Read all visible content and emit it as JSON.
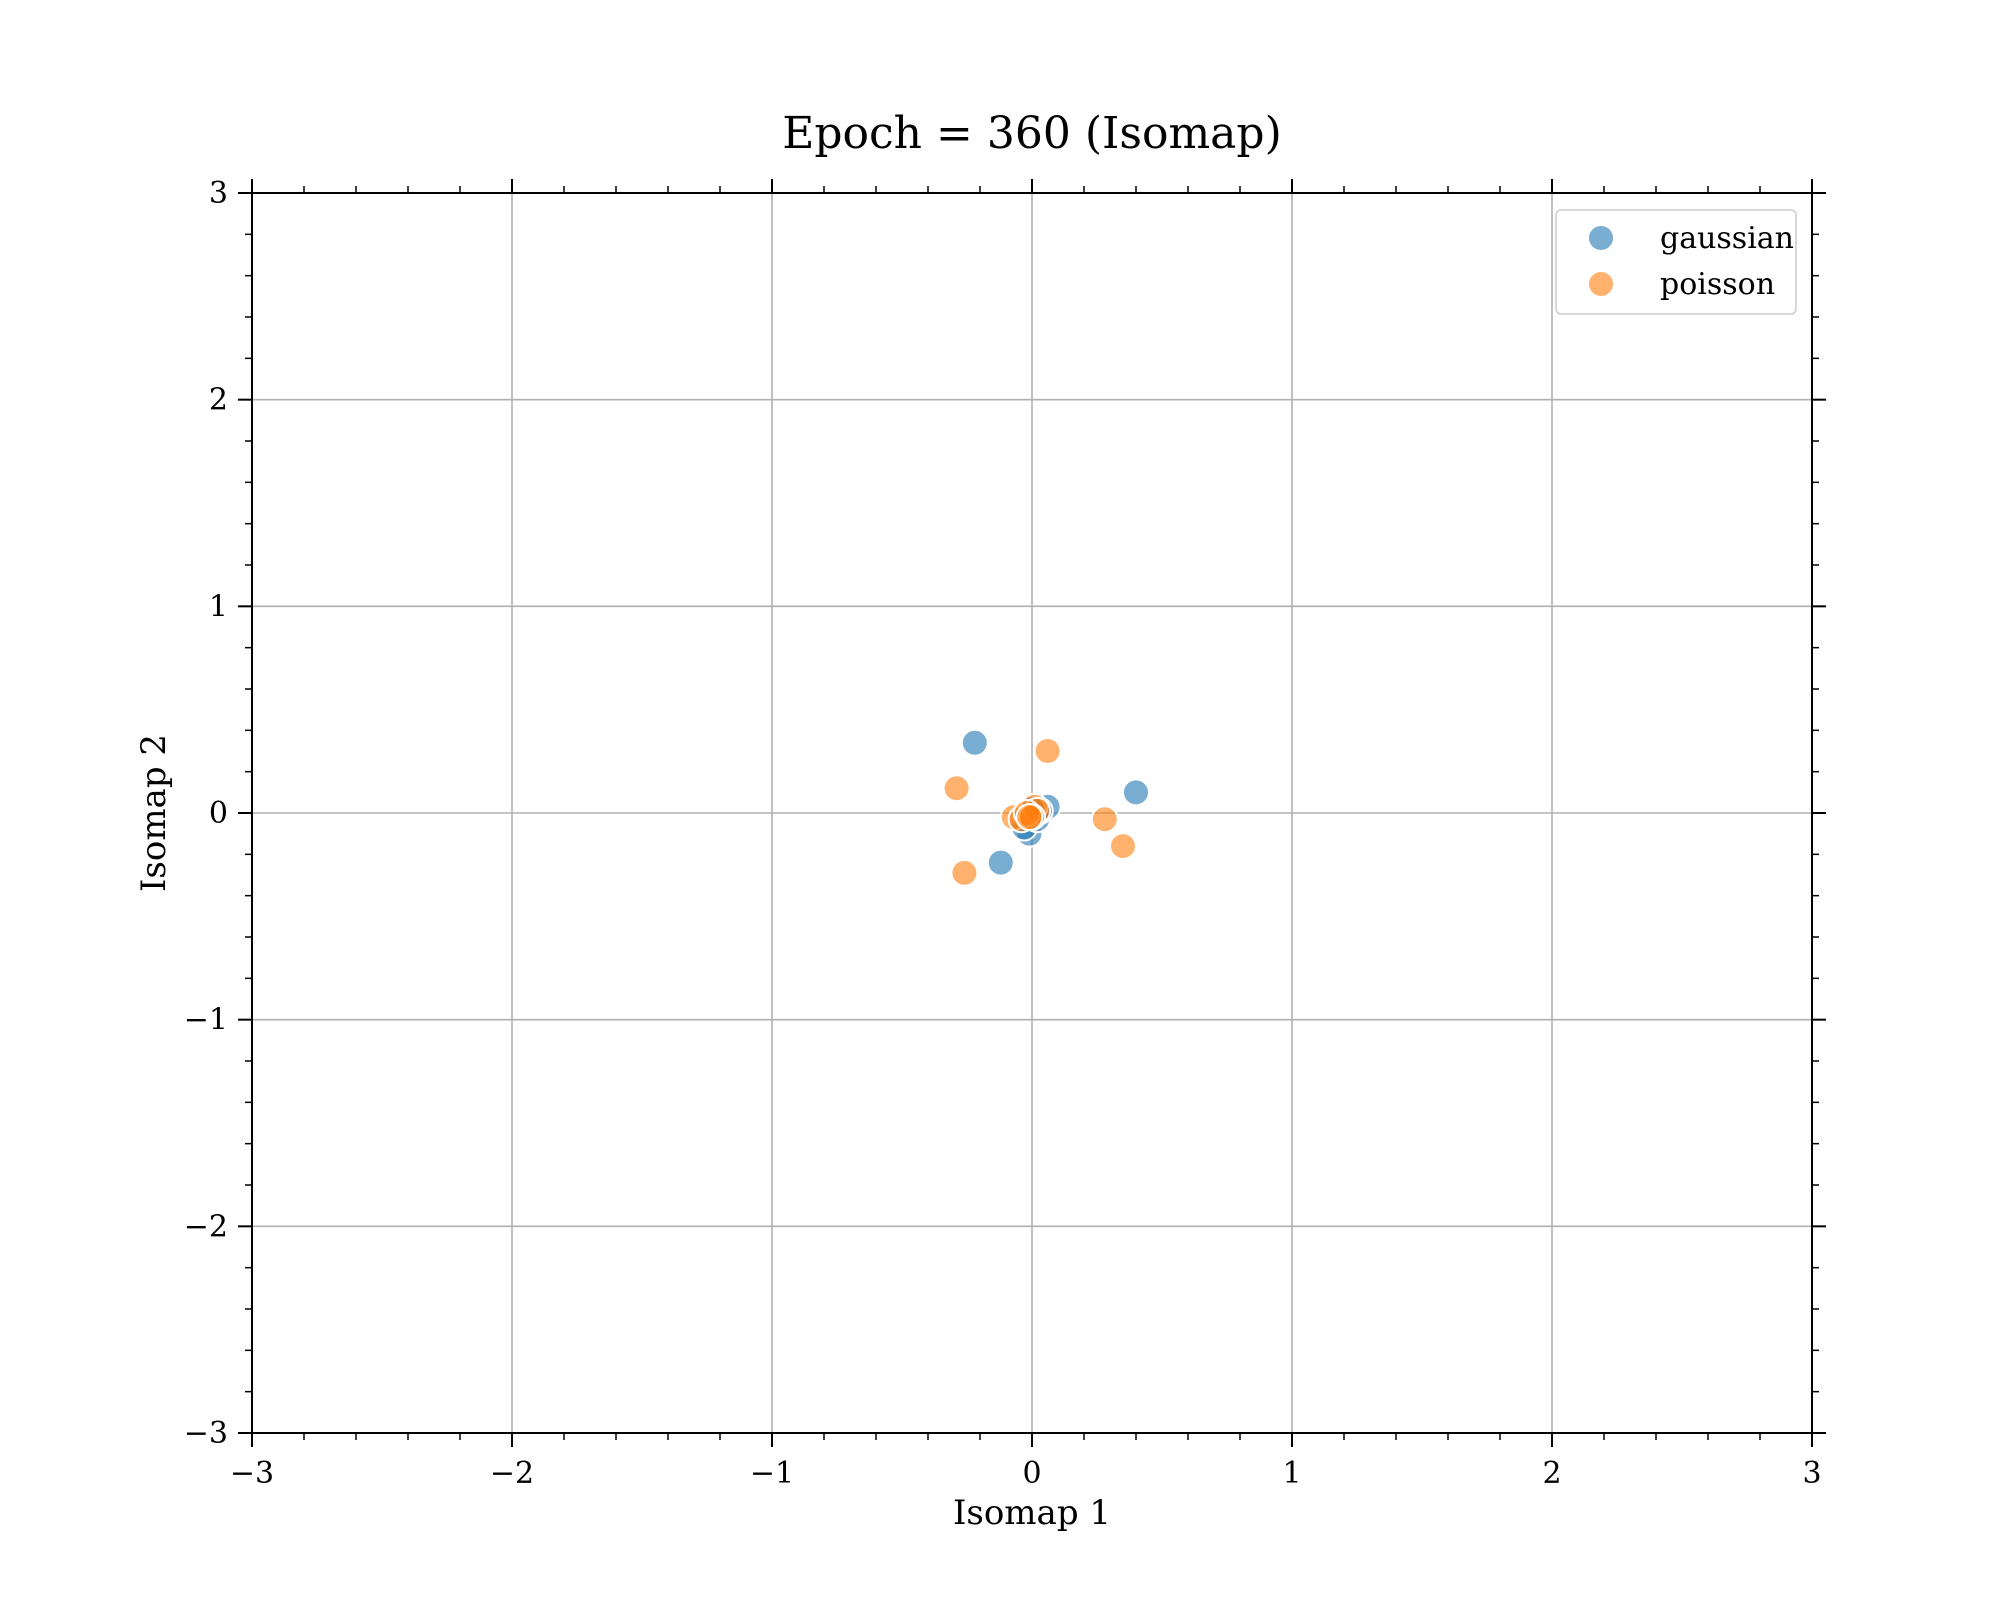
{
  "chart_data": {
    "type": "scatter",
    "title": "Epoch = 360 (Isomap)",
    "xlabel": "Isomap 1",
    "ylabel": "Isomap 2",
    "xlim": [
      -3,
      3
    ],
    "ylim": [
      -3,
      3
    ],
    "xticks": [
      -3,
      -2,
      -1,
      0,
      1,
      2,
      3
    ],
    "yticks": [
      -3,
      -2,
      -1,
      0,
      1,
      2,
      3
    ],
    "xtick_labels": [
      "−3",
      "−2",
      "−1",
      "0",
      "1",
      "2",
      "3"
    ],
    "ytick_labels": [
      "−3",
      "−2",
      "−1",
      "0",
      "1",
      "2",
      "3"
    ],
    "grid": true,
    "legend_position": "top-right",
    "series": [
      {
        "name": "gaussian",
        "color": "#1f77b4",
        "points": [
          [
            -0.22,
            0.34
          ],
          [
            0.4,
            0.1
          ],
          [
            -0.12,
            -0.24
          ],
          [
            0.06,
            0.03
          ],
          [
            -0.01,
            -0.1
          ],
          [
            -0.03,
            -0.07
          ],
          [
            0.02,
            -0.03
          ],
          [
            -0.02,
            -0.01
          ],
          [
            0.03,
            0.01
          ],
          [
            0.0,
            0.02
          ]
        ]
      },
      {
        "name": "poisson",
        "color": "#ff7f0e",
        "points": [
          [
            0.06,
            0.3
          ],
          [
            -0.29,
            0.12
          ],
          [
            0.28,
            -0.03
          ],
          [
            0.35,
            -0.16
          ],
          [
            -0.26,
            -0.29
          ],
          [
            -0.07,
            -0.02
          ],
          [
            -0.04,
            -0.03
          ],
          [
            0.01,
            0.03
          ],
          [
            0.02,
            0.01
          ],
          [
            -0.02,
            0.0
          ],
          [
            0.0,
            -0.02
          ],
          [
            -0.01,
            -0.02
          ]
        ]
      }
    ]
  }
}
